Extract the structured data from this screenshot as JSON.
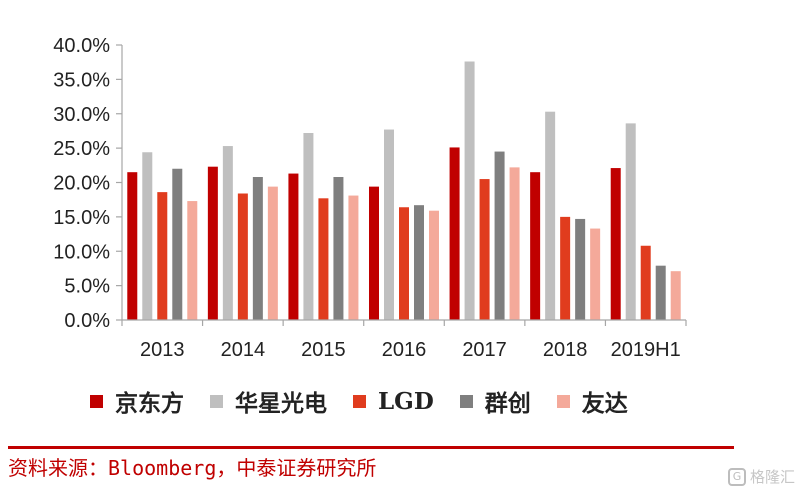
{
  "chart_data": {
    "type": "bar",
    "categories": [
      "2013",
      "2014",
      "2015",
      "2016",
      "2017",
      "2018",
      "2019H1"
    ],
    "series": [
      {
        "name": "京东方",
        "color": "#c00000",
        "values": [
          21.5,
          22.3,
          21.3,
          19.4,
          25.1,
          21.5,
          22.1
        ]
      },
      {
        "name": "华星光电",
        "color": "#bfbfbf",
        "values": [
          24.4,
          25.3,
          27.2,
          27.7,
          37.6,
          30.3,
          28.6
        ]
      },
      {
        "name": "LGD",
        "color": "#e03c1e",
        "values": [
          18.6,
          18.4,
          17.7,
          16.4,
          20.5,
          15.0,
          10.8
        ]
      },
      {
        "name": "群创",
        "color": "#7f7f7f",
        "values": [
          22.0,
          20.8,
          20.8,
          16.7,
          24.5,
          14.7,
          7.9
        ]
      },
      {
        "name": "友达",
        "color": "#f4a99a",
        "values": [
          17.3,
          19.4,
          18.1,
          15.9,
          22.2,
          13.3,
          7.1
        ]
      }
    ],
    "ylim": [
      0,
      40
    ],
    "yticks": [
      "0.0%",
      "5.0%",
      "10.0%",
      "15.0%",
      "20.0%",
      "25.0%",
      "30.0%",
      "35.0%",
      "40.0%"
    ],
    "ytick_values": [
      0,
      5,
      10,
      15,
      20,
      25,
      30,
      35,
      40
    ],
    "grid": false,
    "legend_position": "bottom"
  },
  "source_text": "资料来源：Bloomberg，中泰证券研究所",
  "watermark_text": "格隆汇",
  "watermark_mark": "G",
  "colors": {
    "axis": "#a6a6a6",
    "source": "#c00000",
    "rule": "#c00000"
  }
}
